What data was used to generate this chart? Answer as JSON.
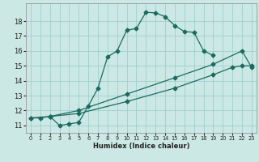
{
  "xlabel": "Humidex (Indice chaleur)",
  "background_color": "#cce8e5",
  "grid_color": "#9ecfcc",
  "line_color": "#1a6b5e",
  "xlim": [
    -0.5,
    23.5
  ],
  "ylim": [
    10.5,
    19.2
  ],
  "xticks": [
    0,
    1,
    2,
    3,
    4,
    5,
    6,
    7,
    8,
    9,
    10,
    11,
    12,
    13,
    14,
    15,
    16,
    17,
    18,
    19,
    20,
    21,
    22,
    23
  ],
  "yticks": [
    11,
    12,
    13,
    14,
    15,
    16,
    17,
    18
  ],
  "curve1_x": [
    0,
    1,
    2,
    3,
    4,
    5,
    6,
    7,
    8,
    9,
    10,
    11,
    12,
    13,
    14,
    15,
    16,
    17,
    18,
    19
  ],
  "curve1_y": [
    11.5,
    11.5,
    11.6,
    11.0,
    11.1,
    11.2,
    12.3,
    13.5,
    15.6,
    16.0,
    17.4,
    17.5,
    18.6,
    18.55,
    18.3,
    17.7,
    17.3,
    17.25,
    16.0,
    15.7
  ],
  "curve2_x": [
    0,
    2,
    5,
    10,
    15,
    19,
    21,
    22,
    23
  ],
  "curve2_y": [
    11.5,
    11.6,
    11.8,
    12.6,
    13.5,
    14.4,
    14.9,
    15.0,
    15.0
  ],
  "curve3_x": [
    2,
    5,
    10,
    15,
    19,
    22,
    23
  ],
  "curve3_y": [
    11.6,
    12.0,
    13.1,
    14.2,
    15.1,
    16.0,
    14.9
  ]
}
